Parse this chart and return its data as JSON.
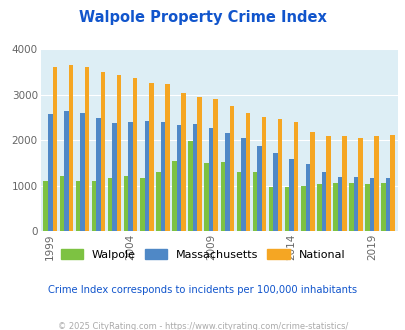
{
  "title": "Walpole Property Crime Index",
  "years": [
    1999,
    2000,
    2001,
    2002,
    2003,
    2004,
    2005,
    2006,
    2007,
    2008,
    2009,
    2010,
    2011,
    2012,
    2013,
    2014,
    2015,
    2016,
    2017,
    2018,
    2019,
    2020
  ],
  "walpole": [
    1100,
    1220,
    1110,
    1100,
    1170,
    1220,
    1160,
    1290,
    1550,
    1980,
    1490,
    1520,
    1300,
    1310,
    960,
    970,
    1000,
    1040,
    1060,
    1050,
    1040,
    1060
  ],
  "massachusetts": [
    2570,
    2640,
    2590,
    2490,
    2370,
    2410,
    2420,
    2410,
    2340,
    2360,
    2280,
    2160,
    2060,
    1880,
    1720,
    1580,
    1470,
    1290,
    1200,
    1180,
    1160,
    1160
  ],
  "national": [
    3610,
    3660,
    3610,
    3510,
    3440,
    3370,
    3270,
    3230,
    3050,
    2960,
    2920,
    2750,
    2610,
    2510,
    2470,
    2410,
    2190,
    2100,
    2090,
    2060,
    2100,
    2110
  ],
  "walpole_color": "#7dc242",
  "mass_color": "#4f88c6",
  "national_color": "#f5a623",
  "bg_color": "#ddeef5",
  "title_color": "#1155cc",
  "ylim": [
    0,
    4000
  ],
  "yticks": [
    0,
    1000,
    2000,
    3000,
    4000
  ],
  "tick_years": [
    1999,
    2004,
    2009,
    2014,
    2019
  ],
  "subtitle": "Crime Index corresponds to incidents per 100,000 inhabitants",
  "copyright": "© 2025 CityRating.com - https://www.cityrating.com/crime-statistics/",
  "subtitle_color": "#1155cc",
  "copyright_color": "#aaaaaa"
}
